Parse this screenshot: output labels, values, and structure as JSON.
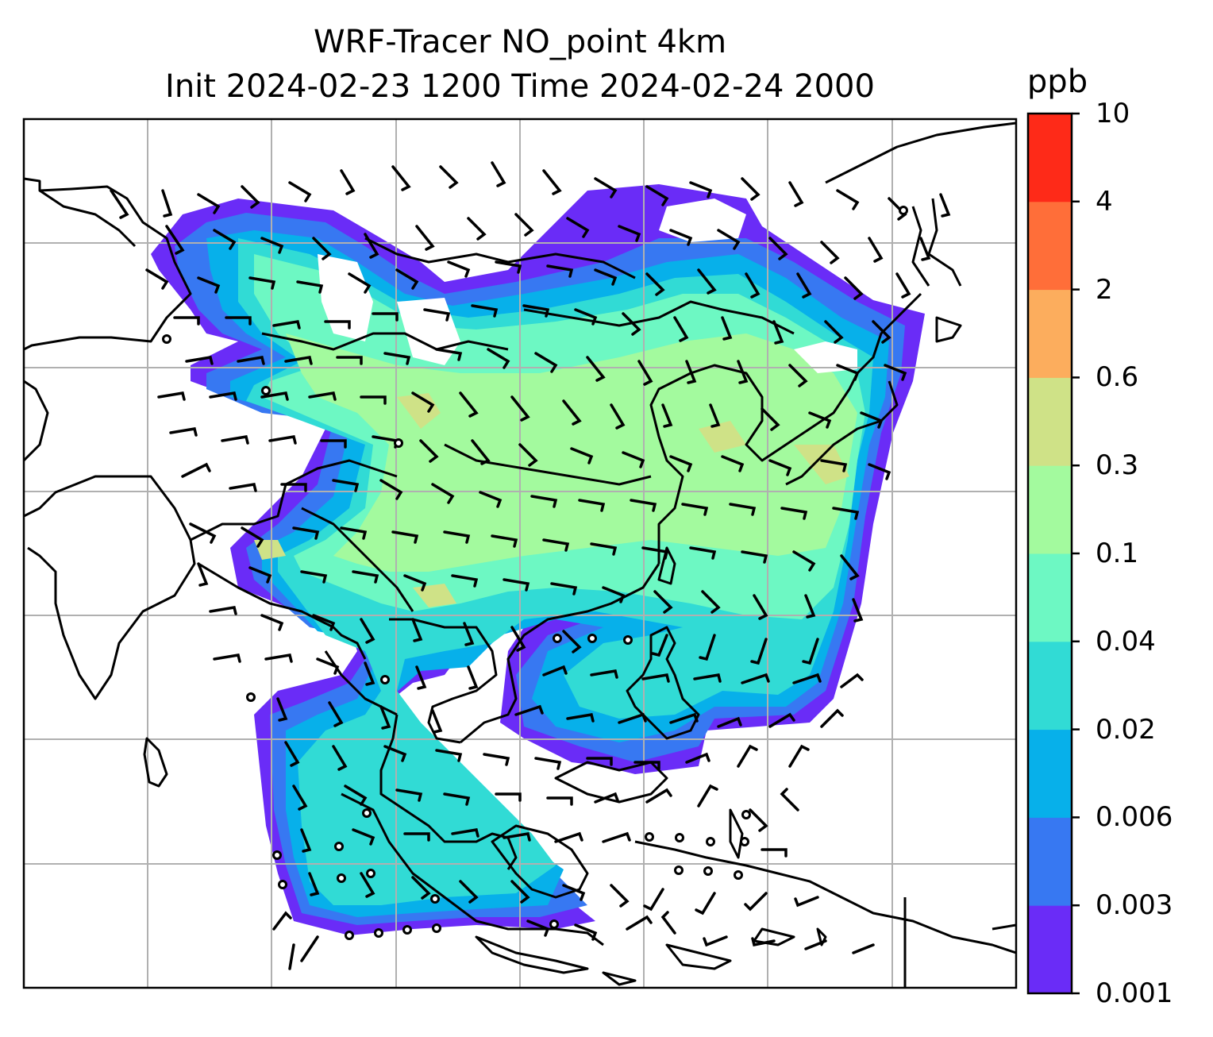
{
  "title": {
    "line1": "WRF-Tracer NO_point 4km",
    "line2": "Init 2024-02-23 1200 Time 2024-02-24 2000"
  },
  "colorbar": {
    "unit": "ppb",
    "ticks": [
      "0.001",
      "0.003",
      "0.006",
      "0.02",
      "0.04",
      "0.1",
      "0.3",
      "0.6",
      "2",
      "4",
      "10"
    ],
    "colors": [
      "#6a2cf7",
      "#3778f2",
      "#07b0ea",
      "#31dbd5",
      "#6df8c3",
      "#a3fa9e",
      "#cfe287",
      "#fcad5d",
      "#ff6e39",
      "#fe2a18"
    ]
  },
  "map": {
    "gridlines": true,
    "coastlines": true,
    "wind_barbs": true
  }
}
